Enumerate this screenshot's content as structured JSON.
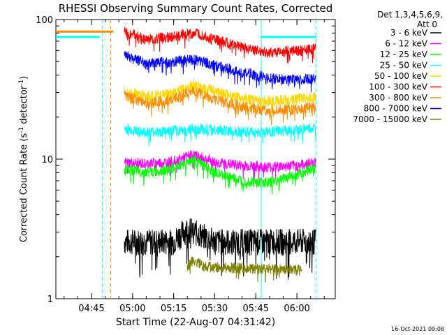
{
  "chart_data": {
    "type": "line",
    "title": "RHESSI Observing Summary Count Rates, Corrected",
    "xlabel": "Start Time (22-Aug-07 04:31:42)",
    "ylabel_main": "Corrected Count Rate (s",
    "ylabel_sup1": "-1",
    "ylabel_mid": " detector",
    "ylabel_sup2": "-1",
    "ylabel_end": ")",
    "yscale": "log",
    "ylim": [
      1,
      100
    ],
    "xlim": [
      "04:32",
      "06:14"
    ],
    "x_ticks": [
      "04:45",
      "05:00",
      "05:15",
      "05:30",
      "05:45",
      "06:00"
    ],
    "y_ticks": [
      "1",
      "10",
      "100"
    ],
    "legend_header": [
      "Det 1,3,4,5,6,9,",
      "Att 0"
    ],
    "legend_position": "top-right",
    "footer_date": "16-Oct-2021 09:08",
    "series": [
      {
        "name": "3 - 6 keV",
        "color": "#000000",
        "x": [
          "04:57",
          "05:05",
          "05:15",
          "05:20",
          "05:30",
          "05:40",
          "05:50",
          "06:00",
          "06:07"
        ],
        "y": [
          2.6,
          2.6,
          2.6,
          3.2,
          2.6,
          2.6,
          2.6,
          2.6,
          2.6
        ]
      },
      {
        "name": "6 - 12 keV",
        "color": "#ff00ff",
        "x": [
          "04:57",
          "05:05",
          "05:15",
          "05:22",
          "05:30",
          "05:40",
          "05:50",
          "06:00",
          "06:07"
        ],
        "y": [
          9.5,
          9.3,
          9.6,
          10.8,
          9.5,
          9.0,
          8.8,
          9.0,
          9.5
        ]
      },
      {
        "name": "12 - 25 keV",
        "color": "#00ff00",
        "x": [
          "04:57",
          "05:05",
          "05:15",
          "05:22",
          "05:30",
          "05:40",
          "05:50",
          "06:00",
          "06:07"
        ],
        "y": [
          8.5,
          8.0,
          8.6,
          10.0,
          8.0,
          7.0,
          6.8,
          7.8,
          8.8
        ]
      },
      {
        "name": "25 - 50 keV",
        "color": "#00ffff",
        "x": [
          "04:57",
          "05:05",
          "05:15",
          "05:25",
          "05:35",
          "05:45",
          "05:55",
          "06:07"
        ],
        "y": [
          16.5,
          15.5,
          16.0,
          16.5,
          16.0,
          15.5,
          16.0,
          16.5
        ]
      },
      {
        "name": "50 - 100 keV",
        "color": "#ffd700",
        "x": [
          "04:57",
          "05:05",
          "05:15",
          "05:22",
          "05:30",
          "05:40",
          "05:50",
          "06:00",
          "06:07"
        ],
        "y": [
          31,
          28,
          30,
          34,
          31,
          27,
          26,
          27,
          28
        ]
      },
      {
        "name": "100 - 300 keV",
        "color": "#ff0000",
        "x": [
          "04:57",
          "05:05",
          "05:15",
          "05:22",
          "05:30",
          "05:40",
          "05:50",
          "06:00",
          "06:07"
        ],
        "y": [
          82,
          72,
          76,
          80,
          72,
          63,
          58,
          60,
          62
        ]
      },
      {
        "name": "300 - 800 keV",
        "color": "#ff8c00",
        "x": [
          "04:57",
          "05:05",
          "05:15",
          "05:22",
          "05:30",
          "05:40",
          "05:50",
          "06:00",
          "06:07"
        ],
        "y": [
          29,
          25,
          27,
          31,
          27,
          24,
          22,
          23,
          24
        ]
      },
      {
        "name": "800 - 7000 keV",
        "color": "#0000ff",
        "x": [
          "04:57",
          "05:05",
          "05:15",
          "05:22",
          "05:30",
          "05:40",
          "05:50",
          "06:00",
          "06:07"
        ],
        "y": [
          55,
          49,
          50,
          52,
          47,
          42,
          38,
          37,
          38
        ]
      },
      {
        "name": "7000 - 15000 keV",
        "color": "#808000",
        "x": [
          "05:20",
          "05:22",
          "05:24",
          "05:26",
          "06:02"
        ],
        "y": [
          1.7,
          1.9,
          1.8,
          1.7,
          1.6
        ]
      }
    ],
    "flags": [
      {
        "color": "#00ffff",
        "segments": [
          [
            "04:32",
            "04:48"
          ],
          [
            "05:47",
            "06:07"
          ]
        ],
        "y": 75
      },
      {
        "color": "#ff8c00",
        "segments": [
          [
            "04:32",
            "04:53"
          ]
        ],
        "y": 82
      }
    ],
    "markers": [
      {
        "color": "#00ffff",
        "style": "dashed",
        "x": [
          "04:49",
          "06:07"
        ]
      },
      {
        "color": "#ff8c00",
        "style": "dashed",
        "x": [
          "04:52"
        ]
      },
      {
        "color": "#00ffff",
        "style": "solid",
        "x": [
          "05:47"
        ]
      }
    ],
    "grid": false
  }
}
